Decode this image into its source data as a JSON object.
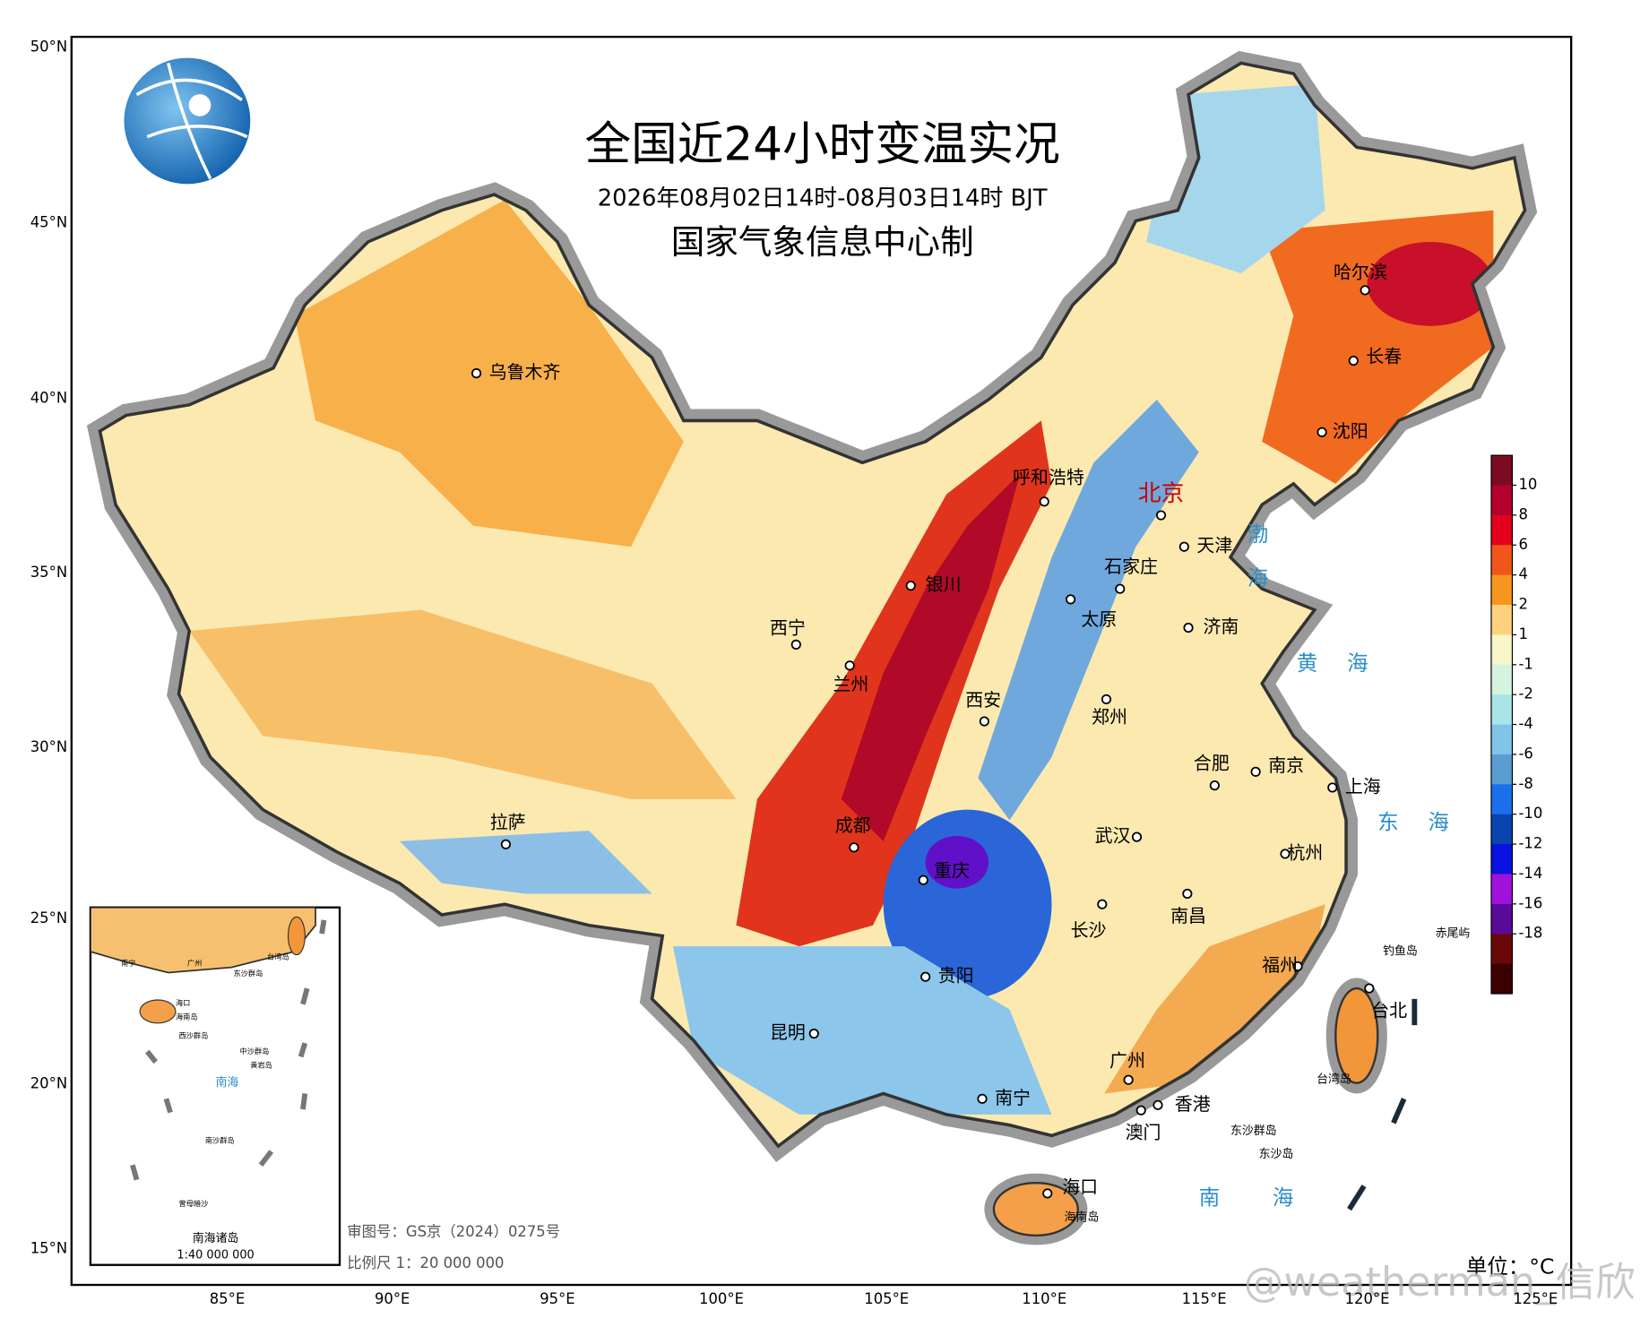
{
  "header": {
    "title": "全国近24小时变温实况",
    "subtitle": "2026年08月02日14时-08月03日14时 BJT",
    "producer": "国家气象信息中心制"
  },
  "lat_labels": [
    "50°N",
    "45°N",
    "40°N",
    "35°N",
    "30°N",
    "25°N",
    "20°N",
    "15°N"
  ],
  "lon_labels": [
    "85°E",
    "90°E",
    "95°E",
    "100°E",
    "105°E",
    "110°E",
    "115°E",
    "120°E",
    "125°E"
  ],
  "cities": [
    "乌鲁木齐",
    "哈尔滨",
    "长春",
    "沈阳",
    "呼和浩特",
    "北京",
    "天津",
    "石家庄",
    "银川",
    "太原",
    "济南",
    "西宁",
    "兰州",
    "郑州",
    "西安",
    "合肥",
    "南京",
    "上海",
    "拉萨",
    "成都",
    "武汉",
    "重庆",
    "杭州",
    "南昌",
    "长沙",
    "福州",
    "贵阳",
    "台北",
    "昆明",
    "广州",
    "南宁",
    "香港",
    "澳门",
    "海口"
  ],
  "seas": [
    "渤海",
    "黄海",
    "东海",
    "南海"
  ],
  "islands": [
    "钓鱼岛",
    "赤尾屿",
    "东沙群岛",
    "东沙岛",
    "台湾岛",
    "海南岛"
  ],
  "notes": {
    "approval": "审图号：GS京（2024）0275号",
    "scale": "比例尺 1：20 000 000",
    "unit": "单位：°C"
  },
  "inset": {
    "title": "南海诸岛",
    "scale": "1:40 000 000",
    "labels": [
      "南宁",
      "广州",
      "台湾岛",
      "东沙群岛",
      "海口",
      "海南岛",
      "西沙群岛",
      "中沙群岛",
      "黄岩岛",
      "南海",
      "南沙群岛",
      "曾母暗沙"
    ]
  },
  "colorbar": {
    "labels": [
      10,
      8,
      6,
      4,
      2,
      1,
      -1,
      -2,
      -4,
      -6,
      -8,
      -10,
      -12,
      -14,
      -16,
      -18
    ],
    "colors": [
      "#7d0a23",
      "#b3002d",
      "#e3001b",
      "#f0561c",
      "#f7961f",
      "#fcd27f",
      "#f8f5c8",
      "#d4f4e0",
      "#a8e4e8",
      "#82c4e8",
      "#5a9dd0",
      "#1a70ea",
      "#0a44b0",
      "#0a10e0",
      "#a012dc",
      "#5a0a99",
      "#6a0808",
      "#3a0000"
    ]
  },
  "watermark": "@weatherman_信欣"
}
